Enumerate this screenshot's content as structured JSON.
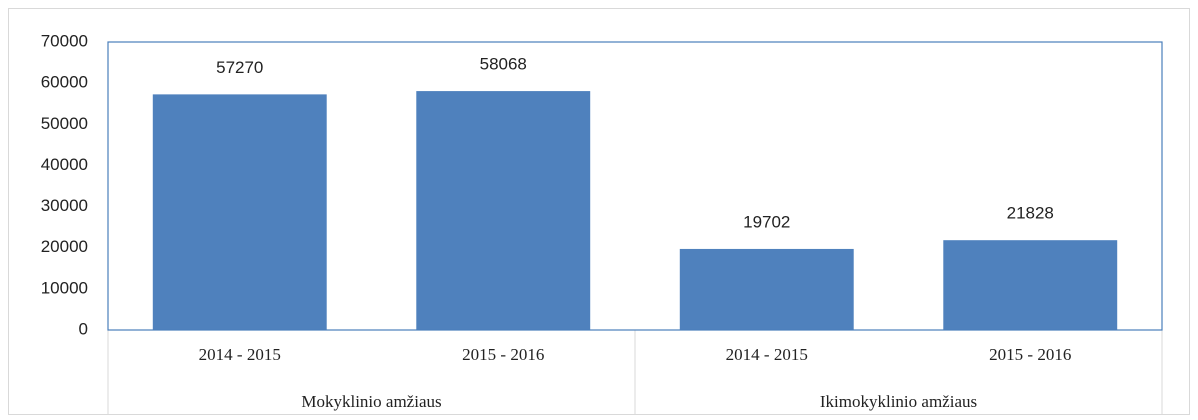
{
  "chart_data": {
    "type": "bar",
    "categories": [
      "2014 - 2015",
      "2015 - 2016",
      "2014 - 2015",
      "2015 - 2016"
    ],
    "groups": [
      "Mokyklinio amžiaus",
      "Ikimokyklinio amžiaus"
    ],
    "values": [
      57270,
      58068,
      19702,
      21828
    ],
    "color": "#4f81bd",
    "ylim": [
      0,
      70000
    ],
    "yticks": [
      0,
      10000,
      20000,
      30000,
      40000,
      50000,
      60000,
      70000
    ],
    "grid": false
  }
}
